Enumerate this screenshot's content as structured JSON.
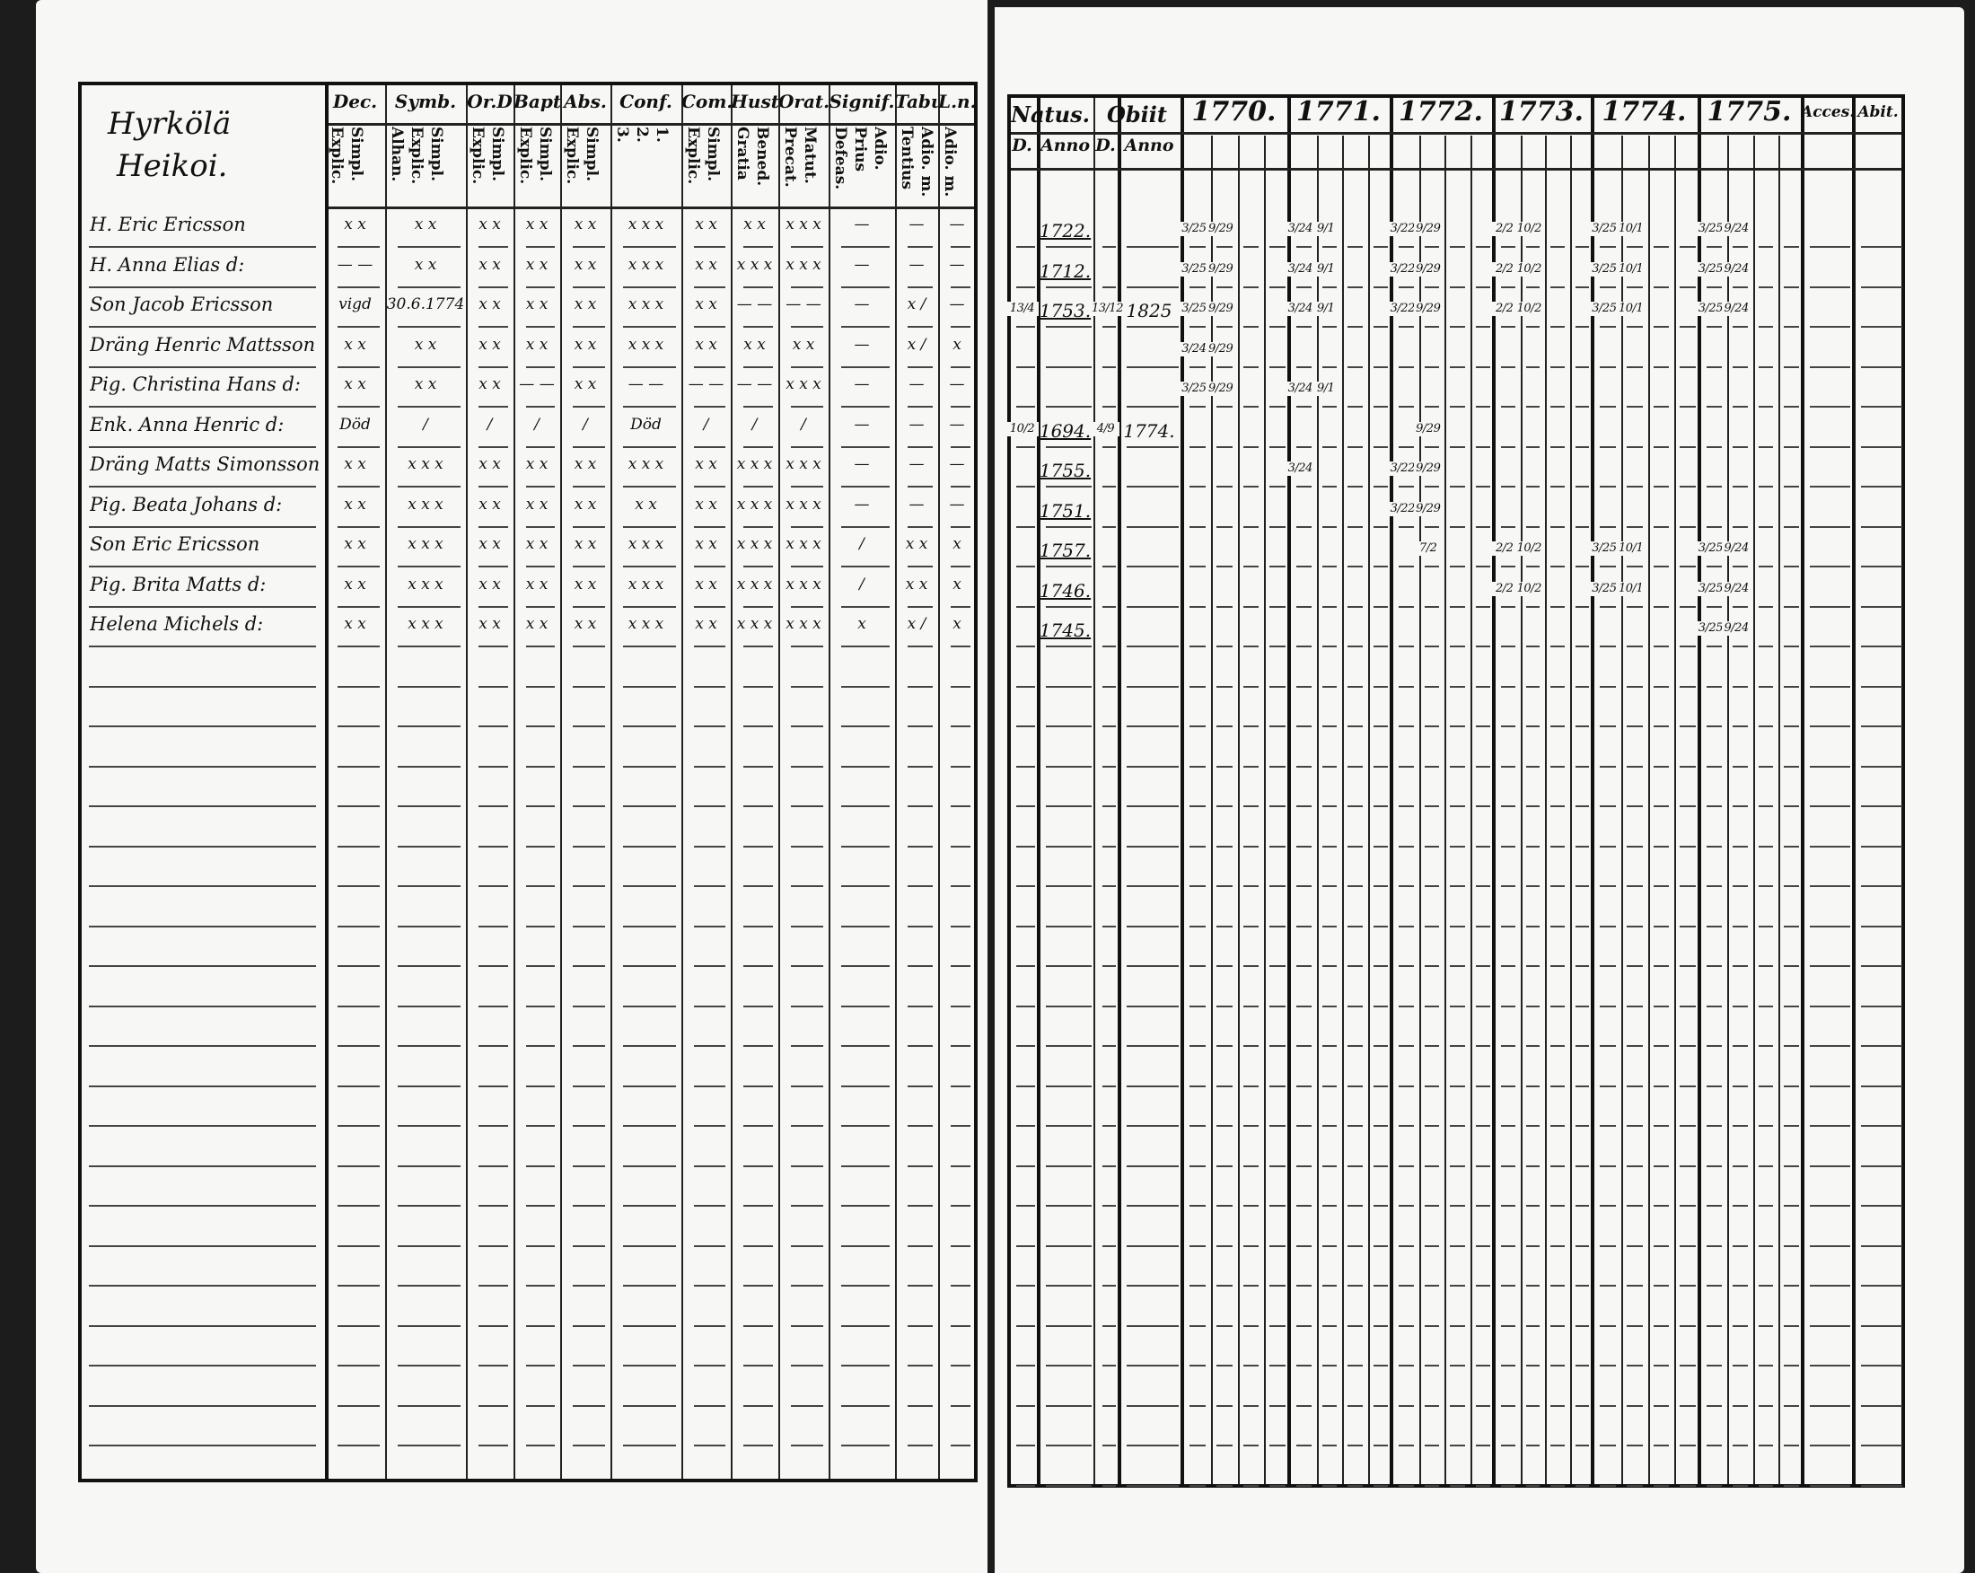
{
  "left_page": {
    "village_title": "Hyrkölä",
    "village_subtitle": "Heikoi.",
    "column_headers": [
      {
        "label": "Dec.",
        "sub": [
          "Explic.",
          "Simpl."
        ]
      },
      {
        "label": "Symb.",
        "sub": [
          "Alhan.",
          "Explic.",
          "Simpl."
        ]
      },
      {
        "label": "Or.D",
        "sub": [
          "Explic.",
          "Simpl."
        ]
      },
      {
        "label": "Bapt.",
        "sub": [
          "Explic.",
          "Simpl."
        ]
      },
      {
        "label": "Abs.",
        "sub": [
          "Explic.",
          "Simpl."
        ]
      },
      {
        "label": "Conf.",
        "sub": [
          "3.",
          "2.",
          "1."
        ]
      },
      {
        "label": "Com.B.",
        "sub": [
          "Explic.",
          "Simpl."
        ]
      },
      {
        "label": "Hust.",
        "sub": [
          "Gratia",
          "Bened."
        ]
      },
      {
        "label": "Orat.",
        "sub": [
          "Precat.",
          "Matut."
        ]
      },
      {
        "label": "Signif.",
        "sub": [
          "Defeas.",
          "Prius",
          "Adio."
        ]
      },
      {
        "label": "Tabul.",
        "sub": [
          "Tentius",
          "Adio. m."
        ]
      },
      {
        "label": "L.n.",
        "sub": [
          "Adio. m."
        ]
      }
    ],
    "rows": [
      {
        "name": "H. Eric Ericsson",
        "marks": [
          "x x",
          "x x",
          "x x",
          "x x",
          "x x",
          "x x x",
          "x x",
          "x x",
          "x x x",
          "—",
          "—",
          "—"
        ]
      },
      {
        "name": "H. Anna Elias d:",
        "marks": [
          "— —",
          "x x",
          "x x",
          "x x",
          "x x",
          "x x x",
          "x x",
          "x x x",
          "x x x",
          "—",
          "—",
          "—"
        ]
      },
      {
        "name": "Son Jacob Ericsson",
        "marks": [
          "vigd",
          "30.6.1774",
          "x x",
          "x x",
          "x x",
          "x x x",
          "x x",
          "— —",
          "— —",
          "—",
          "x /",
          "—"
        ]
      },
      {
        "name": "Dräng Henric Mattsson",
        "marks": [
          "x x",
          "x x",
          "x x",
          "x x",
          "x x",
          "x x x",
          "x x",
          "x x",
          "x x",
          "—",
          "x /",
          "x"
        ]
      },
      {
        "name": "Pig. Christina Hans d:",
        "marks": [
          "x x",
          "x x",
          "x x",
          "— —",
          "x x",
          "— —",
          "— —",
          "— —",
          "x x x",
          "—",
          "—",
          "—"
        ]
      },
      {
        "name": "Enk. Anna Henric d:",
        "marks": [
          "Död",
          "/",
          "/",
          "/",
          "/",
          "Död",
          "/",
          "/",
          "/",
          "—",
          "—",
          "—"
        ]
      },
      {
        "name": "Dräng Matts Simonsson",
        "marks": [
          "x x",
          "x x x",
          "x x",
          "x x",
          "x x",
          "x x x",
          "x x",
          "x x x",
          "x x x",
          "—",
          "—",
          "—"
        ]
      },
      {
        "name": "Pig. Beata Johans d:",
        "marks": [
          "x x",
          "x x x",
          "x x",
          "x x",
          "x x",
          "x x",
          "x x",
          "x x x",
          "x x x",
          "—",
          "—",
          "—"
        ]
      },
      {
        "name": "Son Eric Ericsson",
        "marks": [
          "x x",
          "x x x",
          "x x",
          "x x",
          "x x",
          "x x x",
          "x x",
          "x x x",
          "x x x",
          "/",
          "x x",
          "x"
        ]
      },
      {
        "name": "Pig. Brita Matts d:",
        "marks": [
          "x x",
          "x x x",
          "x x",
          "x x",
          "x x",
          "x x x",
          "x x",
          "x x x",
          "x x x",
          "/",
          "x x",
          "x"
        ]
      },
      {
        "name": "Helena Michels d:",
        "marks": [
          "x x",
          "x x x",
          "x x",
          "x x",
          "x x",
          "x x x",
          "x x",
          "x x x",
          "x x x",
          "x",
          "x /",
          "x"
        ]
      }
    ]
  },
  "right_page": {
    "headers": {
      "natus": "Natus.",
      "obiit": "Obiit",
      "d": "D.",
      "anno": "Anno",
      "accessit": "Acces.",
      "abiit": "Abit."
    },
    "years": [
      "1770.",
      "1771.",
      "1772.",
      "1773.",
      "1774.",
      "1775."
    ],
    "rows": [
      {
        "birth_day": "",
        "birth_year": "1722.",
        "death_day": "",
        "death_year": "",
        "years": [
          [
            "3/25",
            "9/29",
            "",
            ""
          ],
          [
            "3/24",
            "9/1",
            "",
            ""
          ],
          [
            "3/22",
            "9/29",
            "",
            ""
          ],
          [
            "2/2",
            "10/2",
            "",
            ""
          ],
          [
            "3/25",
            "10/1",
            "",
            ""
          ],
          [
            "3/25",
            "9/24",
            "",
            ""
          ]
        ]
      },
      {
        "birth_day": "",
        "birth_year": "1712.",
        "death_day": "",
        "death_year": "",
        "years": [
          [
            "3/25",
            "9/29",
            "",
            ""
          ],
          [
            "3/24",
            "9/1",
            "",
            ""
          ],
          [
            "3/22",
            "9/29",
            "",
            ""
          ],
          [
            "2/2",
            "10/2",
            "",
            ""
          ],
          [
            "3/25",
            "10/1",
            "",
            ""
          ],
          [
            "3/25",
            "9/24",
            "",
            ""
          ]
        ]
      },
      {
        "birth_day": "13/4",
        "birth_year": "1753.",
        "death_day": "13/12",
        "death_year": "1825",
        "years": [
          [
            "3/25",
            "9/29",
            "",
            ""
          ],
          [
            "3/24",
            "9/1",
            "",
            ""
          ],
          [
            "3/22",
            "9/29",
            "",
            ""
          ],
          [
            "2/2",
            "10/2",
            "",
            ""
          ],
          [
            "3/25",
            "10/1",
            "",
            ""
          ],
          [
            "3/25",
            "9/24",
            "",
            ""
          ]
        ]
      },
      {
        "birth_day": "",
        "birth_year": "",
        "death_day": "",
        "death_year": "",
        "years": [
          [
            "3/24",
            "9/29",
            "",
            ""
          ],
          [
            "",
            "",
            "",
            ""
          ],
          [
            "",
            "",
            "",
            ""
          ],
          [
            "",
            "",
            "",
            ""
          ],
          [
            "",
            "",
            "",
            ""
          ],
          [
            "",
            "",
            "",
            ""
          ]
        ]
      },
      {
        "birth_day": "",
        "birth_year": "",
        "death_day": "",
        "death_year": "",
        "years": [
          [
            "3/25",
            "9/29",
            "",
            ""
          ],
          [
            "3/24",
            "9/1",
            "",
            ""
          ],
          [
            "",
            "",
            "",
            ""
          ],
          [
            "",
            "",
            "",
            ""
          ],
          [
            "",
            "",
            "",
            ""
          ],
          [
            "",
            "",
            "",
            ""
          ]
        ]
      },
      {
        "birth_day": "10/2",
        "birth_year": "1694.",
        "death_day": "4/9",
        "death_year": "1774.",
        "years": [
          [
            "",
            "",
            "",
            ""
          ],
          [
            "",
            "",
            "",
            ""
          ],
          [
            "",
            "9/29",
            "",
            ""
          ],
          [
            "",
            "",
            "",
            ""
          ],
          [
            "",
            "",
            "",
            ""
          ],
          [
            "",
            "",
            "",
            ""
          ]
        ]
      },
      {
        "birth_day": "",
        "birth_year": "1755.",
        "death_day": "",
        "death_year": "",
        "years": [
          [
            "",
            "",
            "",
            ""
          ],
          [
            "3/24",
            "",
            "",
            ""
          ],
          [
            "3/22",
            "9/29",
            "",
            ""
          ],
          [
            "",
            "",
            "",
            ""
          ],
          [
            "",
            "",
            "",
            ""
          ],
          [
            "",
            "",
            "",
            ""
          ]
        ]
      },
      {
        "birth_day": "",
        "birth_year": "1751.",
        "death_day": "",
        "death_year": "",
        "years": [
          [
            "",
            "",
            "",
            ""
          ],
          [
            "",
            "",
            "",
            ""
          ],
          [
            "3/22",
            "9/29",
            "",
            ""
          ],
          [
            "",
            "",
            "",
            ""
          ],
          [
            "",
            "",
            "",
            ""
          ],
          [
            "",
            "",
            "",
            ""
          ]
        ]
      },
      {
        "birth_day": "",
        "birth_year": "1757.",
        "death_day": "",
        "death_year": "",
        "years": [
          [
            "",
            "",
            "",
            ""
          ],
          [
            "",
            "",
            "",
            ""
          ],
          [
            "",
            "7/2",
            "",
            ""
          ],
          [
            "2/2",
            "10/2",
            "",
            ""
          ],
          [
            "3/25",
            "10/1",
            "",
            ""
          ],
          [
            "3/25",
            "9/24",
            "",
            ""
          ]
        ]
      },
      {
        "birth_day": "",
        "birth_year": "1746.",
        "death_day": "",
        "death_year": "",
        "years": [
          [
            "",
            "",
            "",
            ""
          ],
          [
            "",
            "",
            "",
            ""
          ],
          [
            "",
            "",
            "",
            ""
          ],
          [
            "2/2",
            "10/2",
            "",
            ""
          ],
          [
            "3/25",
            "10/1",
            "",
            ""
          ],
          [
            "3/25",
            "9/24",
            "",
            ""
          ]
        ]
      },
      {
        "birth_day": "",
        "birth_year": "1745.",
        "death_day": "",
        "death_year": "",
        "years": [
          [
            "",
            "",
            "",
            ""
          ],
          [
            "",
            "",
            "",
            ""
          ],
          [
            "",
            "",
            "",
            ""
          ],
          [
            "",
            "",
            "",
            ""
          ],
          [
            "",
            "",
            "",
            ""
          ],
          [
            "3/25",
            "9/24",
            "",
            ""
          ]
        ]
      }
    ]
  }
}
